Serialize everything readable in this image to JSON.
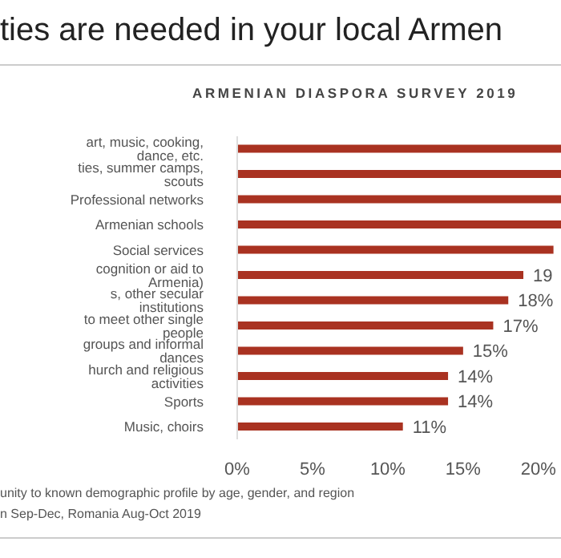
{
  "chart_data": {
    "type": "bar",
    "orientation": "horizontal",
    "title": "ties are needed in your local Armen",
    "subtitle": "ARMENIAN DIASPORA SURVEY 2019",
    "categories": [
      "art, music, cooking, dance, etc.",
      "ties, summer camps, scouts",
      "Professional networks",
      "Armenian schools",
      "Social services",
      "cognition or aid to Armenia)",
      "s, other secular institutions",
      "to meet other single people",
      "groups and informal dances",
      "hurch and religious activities",
      "Sports",
      "Music, choirs"
    ],
    "values": [
      21.5,
      21.5,
      21.5,
      21.5,
      21,
      19,
      18,
      17,
      15,
      14,
      14,
      11
    ],
    "value_labels": [
      null,
      null,
      null,
      null,
      null,
      "19",
      "18%",
      "17%",
      "15%",
      "14%",
      "14%",
      "11%"
    ],
    "color": "#a93221",
    "xlim": [
      0,
      21.5
    ],
    "xticks": [
      {
        "value": 0,
        "label": "0%"
      },
      {
        "value": 5,
        "label": "5%"
      },
      {
        "value": 10,
        "label": "10%"
      },
      {
        "value": 15,
        "label": "15%"
      },
      {
        "value": 20,
        "label": "20%"
      }
    ],
    "grid": false,
    "legend": false,
    "annotations": [
      "unity to known demographic profile by age, gender, and region",
      "n Sep-Dec, Romania Aug-Oct 2019"
    ]
  }
}
